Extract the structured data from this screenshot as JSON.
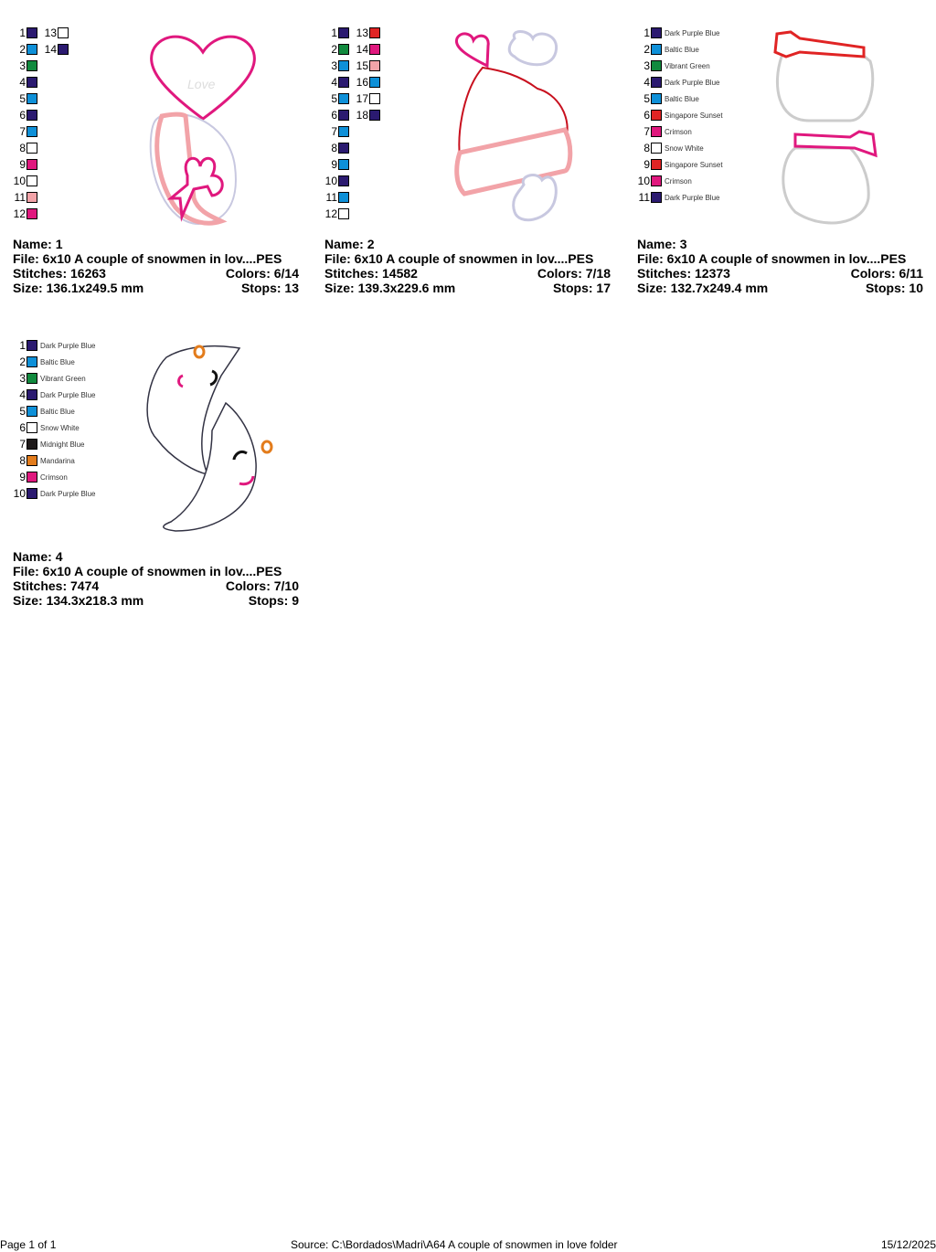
{
  "labels": {
    "name": "Name: ",
    "file": "File: ",
    "stitches": "Stitches: ",
    "colors": "Colors: ",
    "size": "Size: ",
    "stops": "Stops: "
  },
  "palette": {
    "Dark Purple Blue": "#2b1a70",
    "Baltic Blue": "#0e90d8",
    "Vibrant Green": "#118a3e",
    "Singapore Sunset": "#e02424",
    "Crimson": "#e0187e",
    "Snow White": "#ffffff",
    "Midnight Blue": "#1e1a1a",
    "Mandarina": "#e37c1c",
    "Pink": "#f2a3a8"
  },
  "designs": [
    {
      "name": "1",
      "file": "6x10 A couple of snowmen in lov....PES",
      "stitches": "16263",
      "colors": "6/14",
      "size": "136.1x249.5 mm",
      "stops": "13",
      "show_names": false,
      "thread": [
        "#2b1a70",
        "#0e90d8",
        "#118a3e",
        "#2b1a70",
        "#0e90d8",
        "#2b1a70",
        "#0e90d8",
        "#ffffff",
        "#e0187e",
        "#ffffff",
        "#f2a3a8",
        "#e0187e",
        "#ffffff",
        "#2b1a70"
      ]
    },
    {
      "name": "2",
      "file": "6x10 A couple of snowmen in lov....PES",
      "stitches": "14582",
      "colors": "7/18",
      "size": "139.3x229.6 mm",
      "stops": "17",
      "show_names": false,
      "thread": [
        "#2b1a70",
        "#118a3e",
        "#0e90d8",
        "#2b1a70",
        "#0e90d8",
        "#2b1a70",
        "#0e90d8",
        "#2b1a70",
        "#0e90d8",
        "#2b1a70",
        "#0e90d8",
        "#ffffff",
        "#e02424",
        "#e0187e",
        "#f2a3a8",
        "#0e90d8",
        "#ffffff",
        "#2b1a70"
      ]
    },
    {
      "name": "3",
      "file": "6x10 A couple of snowmen in lov....PES",
      "stitches": "12373",
      "colors": "6/11",
      "size": "132.7x249.4 mm",
      "stops": "10",
      "show_names": true,
      "thread": [
        "Dark Purple Blue",
        "Baltic Blue",
        "Vibrant Green",
        "Dark Purple Blue",
        "Baltic Blue",
        "Singapore Sunset",
        "Crimson",
        "Snow White",
        "Singapore Sunset",
        "Crimson",
        "Dark Purple Blue"
      ]
    },
    {
      "name": "4",
      "file": "6x10 A couple of snowmen in lov....PES",
      "stitches": "7474",
      "colors": "7/10",
      "size": "134.3x218.3 mm",
      "stops": "9",
      "show_names": true,
      "thread": [
        "Dark Purple Blue",
        "Baltic Blue",
        "Vibrant Green",
        "Dark Purple Blue",
        "Baltic Blue",
        "Snow White",
        "Midnight Blue",
        "Mandarina",
        "Crimson",
        "Dark Purple Blue"
      ]
    }
  ],
  "artwork": {
    "love_text": "Love"
  },
  "footer": {
    "page": "Page 1 of 1",
    "source": "Source: C:\\Bordados\\Madri\\A64 A couple of snowmen in love folder",
    "date": "15/12/2025"
  }
}
